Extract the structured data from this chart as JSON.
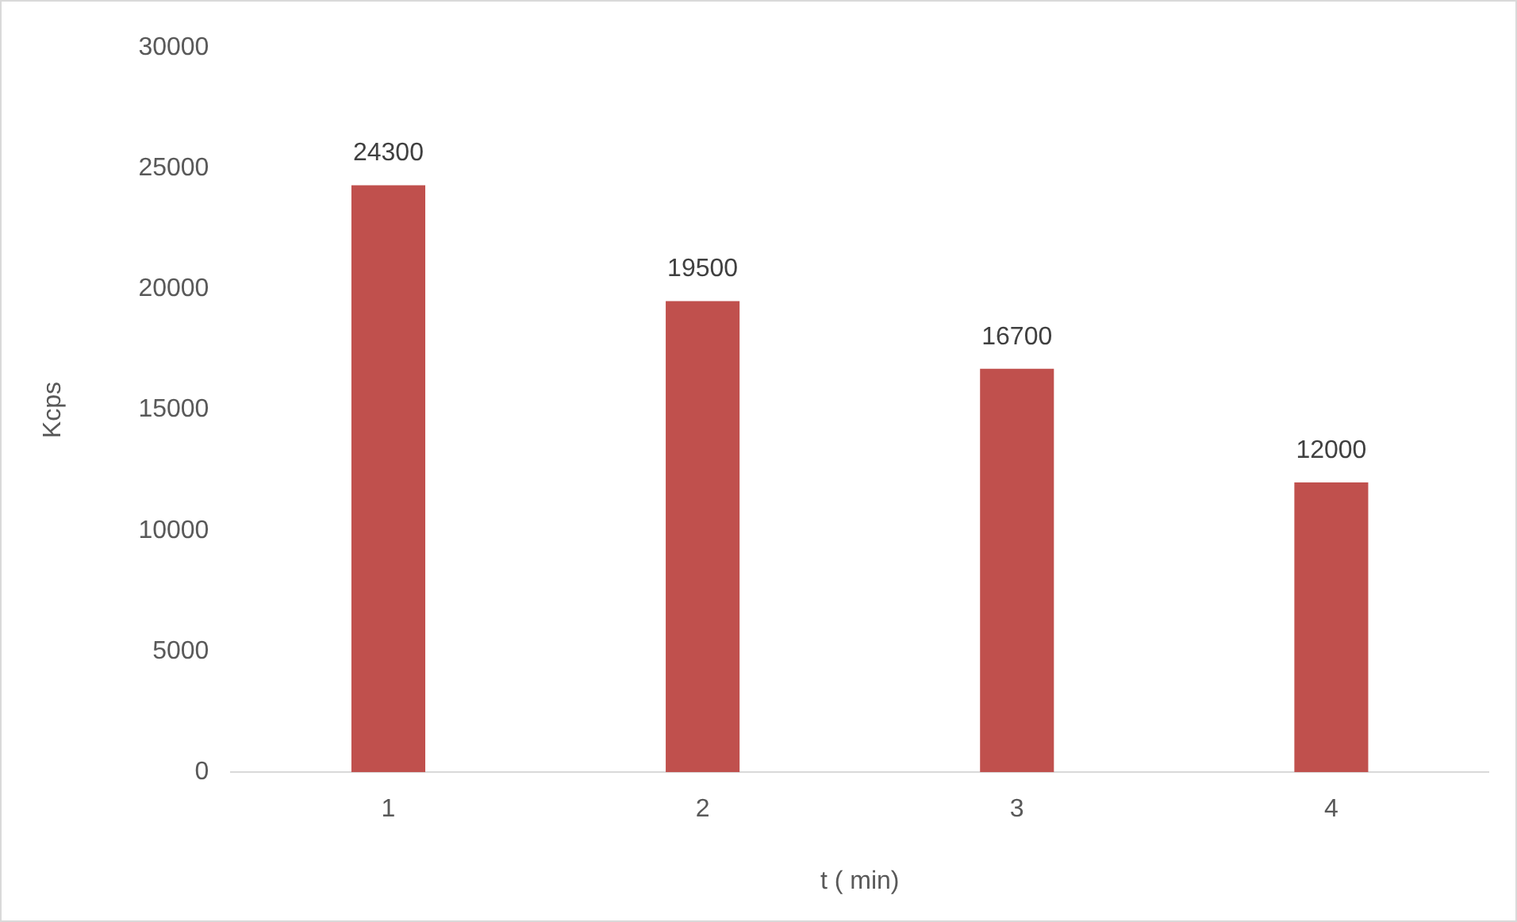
{
  "chart_data": {
    "type": "bar",
    "categories": [
      "1",
      "2",
      "3",
      "4"
    ],
    "values": [
      24300,
      19500,
      16700,
      12000
    ],
    "color": "#c0504d",
    "xlabel": "t ( min)",
    "ylabel": "Kcps",
    "ylim": [
      0,
      30000
    ],
    "yticks": [
      0,
      5000,
      10000,
      15000,
      20000,
      25000,
      30000
    ],
    "grid": false,
    "legend": false,
    "data_labels": true
  }
}
